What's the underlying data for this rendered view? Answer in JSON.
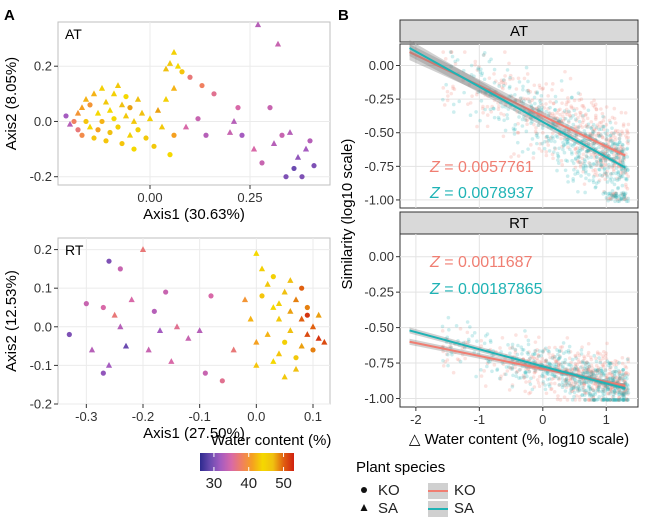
{
  "panels": {
    "a_letter": "A",
    "b_letter": "B"
  },
  "chart_data": [
    {
      "panel": "A",
      "type": "scatter",
      "facet_label": "AT",
      "xlabel": "Axis1 (30.63%)",
      "ylabel": "Axis2 (8.05%)",
      "xlim": [
        -0.23,
        0.45
      ],
      "ylim": [
        -0.23,
        0.36
      ],
      "xticks": [
        0.0,
        0.25
      ],
      "xtick_labels": [
        "0.00",
        "0.25"
      ],
      "yticks": [
        -0.2,
        0.0,
        0.2
      ],
      "ytick_labels": [
        "-0.2",
        "0.0",
        "0.2"
      ],
      "grid": true,
      "points": [
        [
          -0.21,
          0.02,
          32,
          "KO"
        ],
        [
          -0.2,
          -0.01,
          33,
          "SA"
        ],
        [
          -0.19,
          0.0,
          38,
          "KO"
        ],
        [
          -0.18,
          0.03,
          40,
          "SA"
        ],
        [
          -0.18,
          -0.03,
          37,
          "KO"
        ],
        [
          -0.17,
          0.05,
          41,
          "SA"
        ],
        [
          -0.17,
          -0.05,
          39,
          "KO"
        ],
        [
          -0.16,
          0.08,
          42,
          "SA"
        ],
        [
          -0.16,
          0.0,
          43,
          "KO"
        ],
        [
          -0.15,
          -0.02,
          44,
          "SA"
        ],
        [
          -0.15,
          0.06,
          40,
          "KO"
        ],
        [
          -0.14,
          0.1,
          42,
          "SA"
        ],
        [
          -0.14,
          -0.06,
          43,
          "KO"
        ],
        [
          -0.13,
          0.03,
          44,
          "SA"
        ],
        [
          -0.13,
          -0.03,
          41,
          "KO"
        ],
        [
          -0.12,
          0.12,
          45,
          "SA"
        ],
        [
          -0.12,
          0.0,
          42,
          "KO"
        ],
        [
          -0.11,
          0.07,
          46,
          "SA"
        ],
        [
          -0.11,
          -0.07,
          43,
          "KO"
        ],
        [
          -0.1,
          0.04,
          44,
          "SA"
        ],
        [
          -0.1,
          -0.04,
          47,
          "KO"
        ],
        [
          -0.09,
          0.1,
          45,
          "SA"
        ],
        [
          -0.09,
          0.01,
          44,
          "KO"
        ],
        [
          -0.08,
          0.13,
          46,
          "SA"
        ],
        [
          -0.08,
          -0.02,
          45,
          "KO"
        ],
        [
          -0.07,
          0.06,
          47,
          "SA"
        ],
        [
          -0.07,
          -0.08,
          43,
          "KO"
        ],
        [
          -0.06,
          0.02,
          46,
          "SA"
        ],
        [
          -0.06,
          0.09,
          44,
          "KO"
        ],
        [
          -0.05,
          -0.05,
          45,
          "SA"
        ],
        [
          -0.05,
          0.05,
          48,
          "KO"
        ],
        [
          -0.04,
          0.0,
          46,
          "SA"
        ],
        [
          -0.04,
          -0.1,
          44,
          "KO"
        ],
        [
          -0.03,
          0.08,
          47,
          "SA"
        ],
        [
          -0.03,
          -0.03,
          45,
          "KO"
        ],
        [
          -0.02,
          0.03,
          47,
          "SA"
        ],
        [
          -0.01,
          -0.06,
          46,
          "KO"
        ],
        [
          0.0,
          0.01,
          45,
          "SA"
        ],
        [
          0.01,
          -0.09,
          46,
          "KO"
        ],
        [
          0.02,
          0.04,
          48,
          "SA"
        ],
        [
          0.03,
          -0.02,
          46,
          "SA"
        ],
        [
          0.04,
          0.08,
          45,
          "SA"
        ],
        [
          0.05,
          -0.12,
          44,
          "KO"
        ],
        [
          0.06,
          0.12,
          42,
          "SA"
        ],
        [
          0.06,
          -0.05,
          41,
          "KO"
        ],
        [
          0.05,
          0.21,
          46,
          "SA"
        ],
        [
          0.06,
          0.25,
          45,
          "SA"
        ],
        [
          0.07,
          0.2,
          44,
          "SA"
        ],
        [
          0.08,
          0.18,
          43,
          "KO"
        ],
        [
          0.04,
          0.19,
          47,
          "SA"
        ],
        [
          0.09,
          -0.02,
          35,
          "SA"
        ],
        [
          0.12,
          0.01,
          34,
          "KO"
        ],
        [
          0.14,
          -0.05,
          33,
          "KO"
        ],
        [
          0.16,
          0.1,
          36,
          "KO"
        ],
        [
          0.2,
          -0.04,
          34,
          "SA"
        ],
        [
          0.21,
          0.0,
          33,
          "SA"
        ],
        [
          0.23,
          -0.05,
          32,
          "KO"
        ],
        [
          0.26,
          -0.1,
          35,
          "SA"
        ],
        [
          0.28,
          -0.15,
          34,
          "KO"
        ],
        [
          0.31,
          -0.08,
          33,
          "SA"
        ],
        [
          0.33,
          -0.05,
          34,
          "KO"
        ],
        [
          0.34,
          -0.2,
          30,
          "KO"
        ],
        [
          0.36,
          -0.17,
          29,
          "KO"
        ],
        [
          0.37,
          -0.13,
          31,
          "SA"
        ],
        [
          0.38,
          -0.2,
          30,
          "KO"
        ],
        [
          0.39,
          -0.1,
          32,
          "SA"
        ],
        [
          0.4,
          -0.07,
          33,
          "KO"
        ],
        [
          0.41,
          -0.16,
          30,
          "KO"
        ],
        [
          0.32,
          0.28,
          34,
          "SA"
        ],
        [
          0.35,
          -0.04,
          33,
          "SA"
        ],
        [
          0.27,
          0.35,
          33,
          "SA"
        ],
        [
          0.22,
          0.05,
          35,
          "KO"
        ],
        [
          0.13,
          0.13,
          38,
          "KO"
        ],
        [
          0.1,
          0.16,
          37,
          "KO"
        ],
        [
          0.3,
          0.05,
          34,
          "KO"
        ]
      ]
    },
    {
      "panel": "A",
      "type": "scatter",
      "facet_label": "RT",
      "xlabel": "Axis1 (27.50%)",
      "ylabel": "Axis2 (12.53%)",
      "xlim": [
        -0.35,
        0.13
      ],
      "ylim": [
        -0.2,
        0.23
      ],
      "xticks": [
        -0.3,
        -0.2,
        -0.1,
        0.0,
        0.1
      ],
      "xtick_labels": [
        "-0.3",
        "-0.2",
        "-0.1",
        "0.0",
        "0.1"
      ],
      "yticks": [
        -0.2,
        -0.1,
        0.0,
        0.1,
        0.2
      ],
      "ytick_labels": [
        "-0.2",
        "-0.1",
        "0.0",
        "0.1",
        "0.2"
      ],
      "grid": true,
      "points": [
        [
          -0.33,
          -0.02,
          30,
          "KO"
        ],
        [
          -0.3,
          0.06,
          34,
          "KO"
        ],
        [
          -0.29,
          -0.06,
          33,
          "SA"
        ],
        [
          -0.27,
          0.05,
          35,
          "KO"
        ],
        [
          -0.27,
          -0.12,
          31,
          "KO"
        ],
        [
          -0.26,
          0.17,
          30,
          "KO"
        ],
        [
          -0.26,
          -0.1,
          32,
          "SA"
        ],
        [
          -0.25,
          0.03,
          37,
          "SA"
        ],
        [
          -0.24,
          0.0,
          33,
          "SA"
        ],
        [
          -0.24,
          0.15,
          34,
          "KO"
        ],
        [
          -0.23,
          -0.05,
          29,
          "SA"
        ],
        [
          -0.22,
          0.07,
          35,
          "SA"
        ],
        [
          -0.2,
          0.2,
          37,
          "SA"
        ],
        [
          -0.19,
          -0.06,
          34,
          "SA"
        ],
        [
          -0.18,
          0.04,
          33,
          "KO"
        ],
        [
          -0.17,
          -0.01,
          32,
          "SA"
        ],
        [
          -0.16,
          0.09,
          34,
          "KO"
        ],
        [
          -0.15,
          -0.09,
          35,
          "SA"
        ],
        [
          -0.14,
          0.0,
          36,
          "SA"
        ],
        [
          -0.12,
          -0.03,
          34,
          "SA"
        ],
        [
          -0.1,
          -0.01,
          33,
          "SA"
        ],
        [
          -0.09,
          -0.12,
          34,
          "KO"
        ],
        [
          -0.08,
          0.08,
          35,
          "KO"
        ],
        [
          -0.06,
          -0.14,
          36,
          "KO"
        ],
        [
          -0.04,
          -0.06,
          37,
          "SA"
        ],
        [
          -0.02,
          0.07,
          40,
          "SA"
        ],
        [
          -0.01,
          0.02,
          42,
          "SA"
        ],
        [
          0.0,
          0.19,
          44,
          "SA"
        ],
        [
          0.0,
          -0.04,
          41,
          "SA"
        ],
        [
          0.01,
          0.15,
          45,
          "SA"
        ],
        [
          0.01,
          0.08,
          43,
          "KO"
        ],
        [
          0.02,
          0.11,
          46,
          "SA"
        ],
        [
          0.02,
          -0.02,
          42,
          "SA"
        ],
        [
          0.03,
          0.05,
          44,
          "SA"
        ],
        [
          0.03,
          0.13,
          45,
          "KO"
        ],
        [
          0.04,
          -0.07,
          43,
          "SA"
        ],
        [
          0.04,
          0.02,
          46,
          "SA"
        ],
        [
          0.05,
          0.09,
          47,
          "SA"
        ],
        [
          0.05,
          -0.04,
          45,
          "KO"
        ],
        [
          0.06,
          0.04,
          48,
          "SA"
        ],
        [
          0.06,
          -0.01,
          47,
          "SA"
        ],
        [
          0.07,
          0.07,
          49,
          "SA"
        ],
        [
          0.07,
          -0.08,
          46,
          "KO"
        ],
        [
          0.08,
          0.02,
          50,
          "SA"
        ],
        [
          0.08,
          -0.05,
          48,
          "SA"
        ],
        [
          0.09,
          0.05,
          49,
          "KO"
        ],
        [
          0.09,
          -0.02,
          51,
          "SA"
        ],
        [
          0.1,
          0.0,
          50,
          "SA"
        ],
        [
          0.1,
          -0.06,
          49,
          "KO"
        ],
        [
          0.11,
          -0.03,
          52,
          "SA"
        ],
        [
          0.11,
          0.03,
          48,
          "SA"
        ],
        [
          0.12,
          -0.04,
          51,
          "SA"
        ],
        [
          0.07,
          -0.11,
          47,
          "SA"
        ],
        [
          0.05,
          -0.13,
          46,
          "SA"
        ],
        [
          0.08,
          0.1,
          50,
          "KO"
        ],
        [
          0.09,
          0.03,
          52,
          "KO"
        ],
        [
          0.06,
          0.12,
          47,
          "SA"
        ],
        [
          0.04,
          0.06,
          45,
          "SA"
        ],
        [
          0.03,
          -0.09,
          44,
          "SA"
        ],
        [
          0.0,
          -0.1,
          43,
          "SA"
        ]
      ]
    },
    {
      "panel": "B",
      "type": "scatter",
      "facet_label": "AT",
      "xlabel": "△ Water content (%, log10 scale)",
      "ylabel": "Similarity (log10 scale)",
      "xlim": [
        -2.25,
        1.5
      ],
      "ylim": [
        -1.06,
        0.16
      ],
      "xticks": [
        -2,
        -1,
        0,
        1
      ],
      "xtick_labels": [
        "-2",
        "-1",
        "0",
        "1"
      ],
      "yticks": [
        0.0,
        -0.25,
        -0.5,
        -0.75,
        -1.0
      ],
      "ytick_labels": [
        "0.00",
        "-0.25",
        "-0.50",
        "-0.75",
        "-1.00"
      ],
      "grid": true,
      "series": [
        {
          "name": "KO",
          "fit_line": [
            [
              -2.1,
              0.1
            ],
            [
              1.3,
              -0.67
            ]
          ]
        },
        {
          "name": "SA",
          "fit_line": [
            [
              -2.1,
              0.13
            ],
            [
              1.3,
              -0.76
            ]
          ]
        }
      ],
      "annotations": [
        {
          "prefix": "Z",
          "text": " = 0.0057761",
          "series": "KO"
        },
        {
          "prefix": "Z",
          "text": " = 0.0078937",
          "series": "SA"
        }
      ]
    },
    {
      "panel": "B",
      "type": "scatter",
      "facet_label": "RT",
      "xlabel": "△ Water content (%, log10 scale)",
      "ylabel": "Similarity (log10 scale)",
      "xlim": [
        -2.25,
        1.5
      ],
      "ylim": [
        -1.06,
        0.16
      ],
      "xticks": [
        -2,
        -1,
        0,
        1
      ],
      "xtick_labels": [
        "-2",
        "-1",
        "0",
        "1"
      ],
      "yticks": [
        0.0,
        -0.25,
        -0.5,
        -0.75,
        -1.0
      ],
      "ytick_labels": [
        "0.00",
        "-0.25",
        "-0.50",
        "-0.75",
        "-1.00"
      ],
      "grid": true,
      "series": [
        {
          "name": "KO",
          "fit_line": [
            [
              -2.1,
              -0.6
            ],
            [
              1.3,
              -0.91
            ]
          ]
        },
        {
          "name": "SA",
          "fit_line": [
            [
              -2.1,
              -0.52
            ],
            [
              1.3,
              -0.93
            ]
          ]
        }
      ],
      "annotations": [
        {
          "prefix": "Z",
          "text": " = 0.0011687",
          "series": "KO"
        },
        {
          "prefix": "Z",
          "text": " = 0.00187865",
          "series": "SA"
        }
      ]
    }
  ],
  "legend": {
    "water_title": "Water content (%)",
    "water_ticks": [
      30,
      40,
      50
    ],
    "water_tick_labels": [
      "30",
      "40",
      "50"
    ],
    "water_range": [
      26,
      53
    ],
    "water_colors": [
      "#2d2a8e",
      "#6b4bb0",
      "#a55cc0",
      "#d869a8",
      "#f08060",
      "#f5a020",
      "#f5d800",
      "#f0c010",
      "#e06010",
      "#d02010"
    ],
    "species_title": "Plant species",
    "species": [
      {
        "name": "KO",
        "shape": "circle",
        "line_color": "#f07e72"
      },
      {
        "name": "SA",
        "shape": "triangle",
        "line_color": "#1fb3b5"
      }
    ]
  },
  "colors": {
    "ko": "#f07e72",
    "sa": "#1fb3b5",
    "strip": "#d9d9d9",
    "grid": "#ebebeb"
  }
}
